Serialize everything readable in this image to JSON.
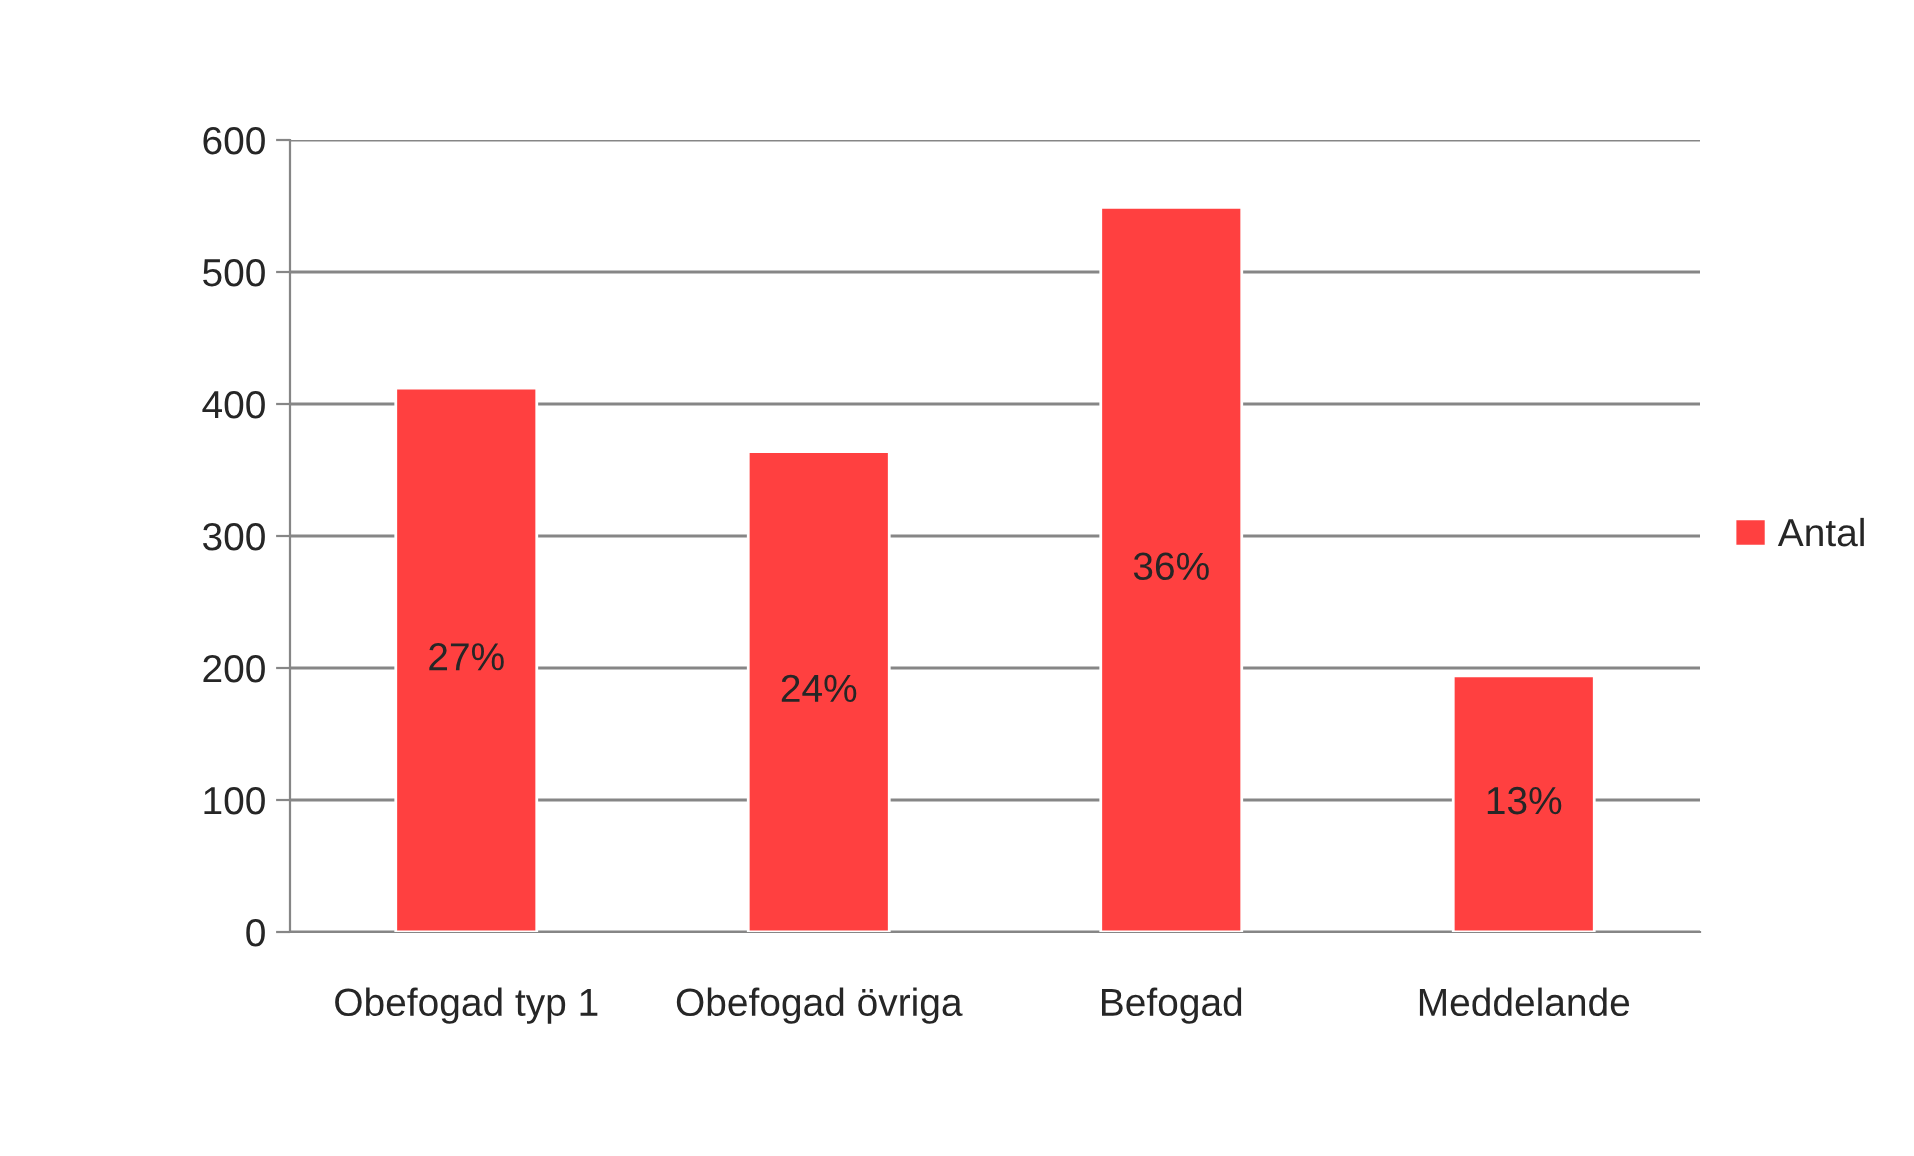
{
  "chart_data": {
    "type": "bar",
    "categories": [
      "Obefogad typ 1",
      "Obefogad övriga",
      "Befogad",
      "Meddelande"
    ],
    "series": [
      {
        "name": "Antal",
        "color": "#ff4040",
        "values": [
          412,
          364,
          549,
          194
        ]
      }
    ],
    "annotations": [
      "27%",
      "24%",
      "36%",
      "13%"
    ],
    "ylim": [
      0,
      600
    ],
    "yticks": [
      0,
      100,
      200,
      300,
      400,
      500,
      600
    ],
    "grid": "y",
    "legend": "right"
  }
}
